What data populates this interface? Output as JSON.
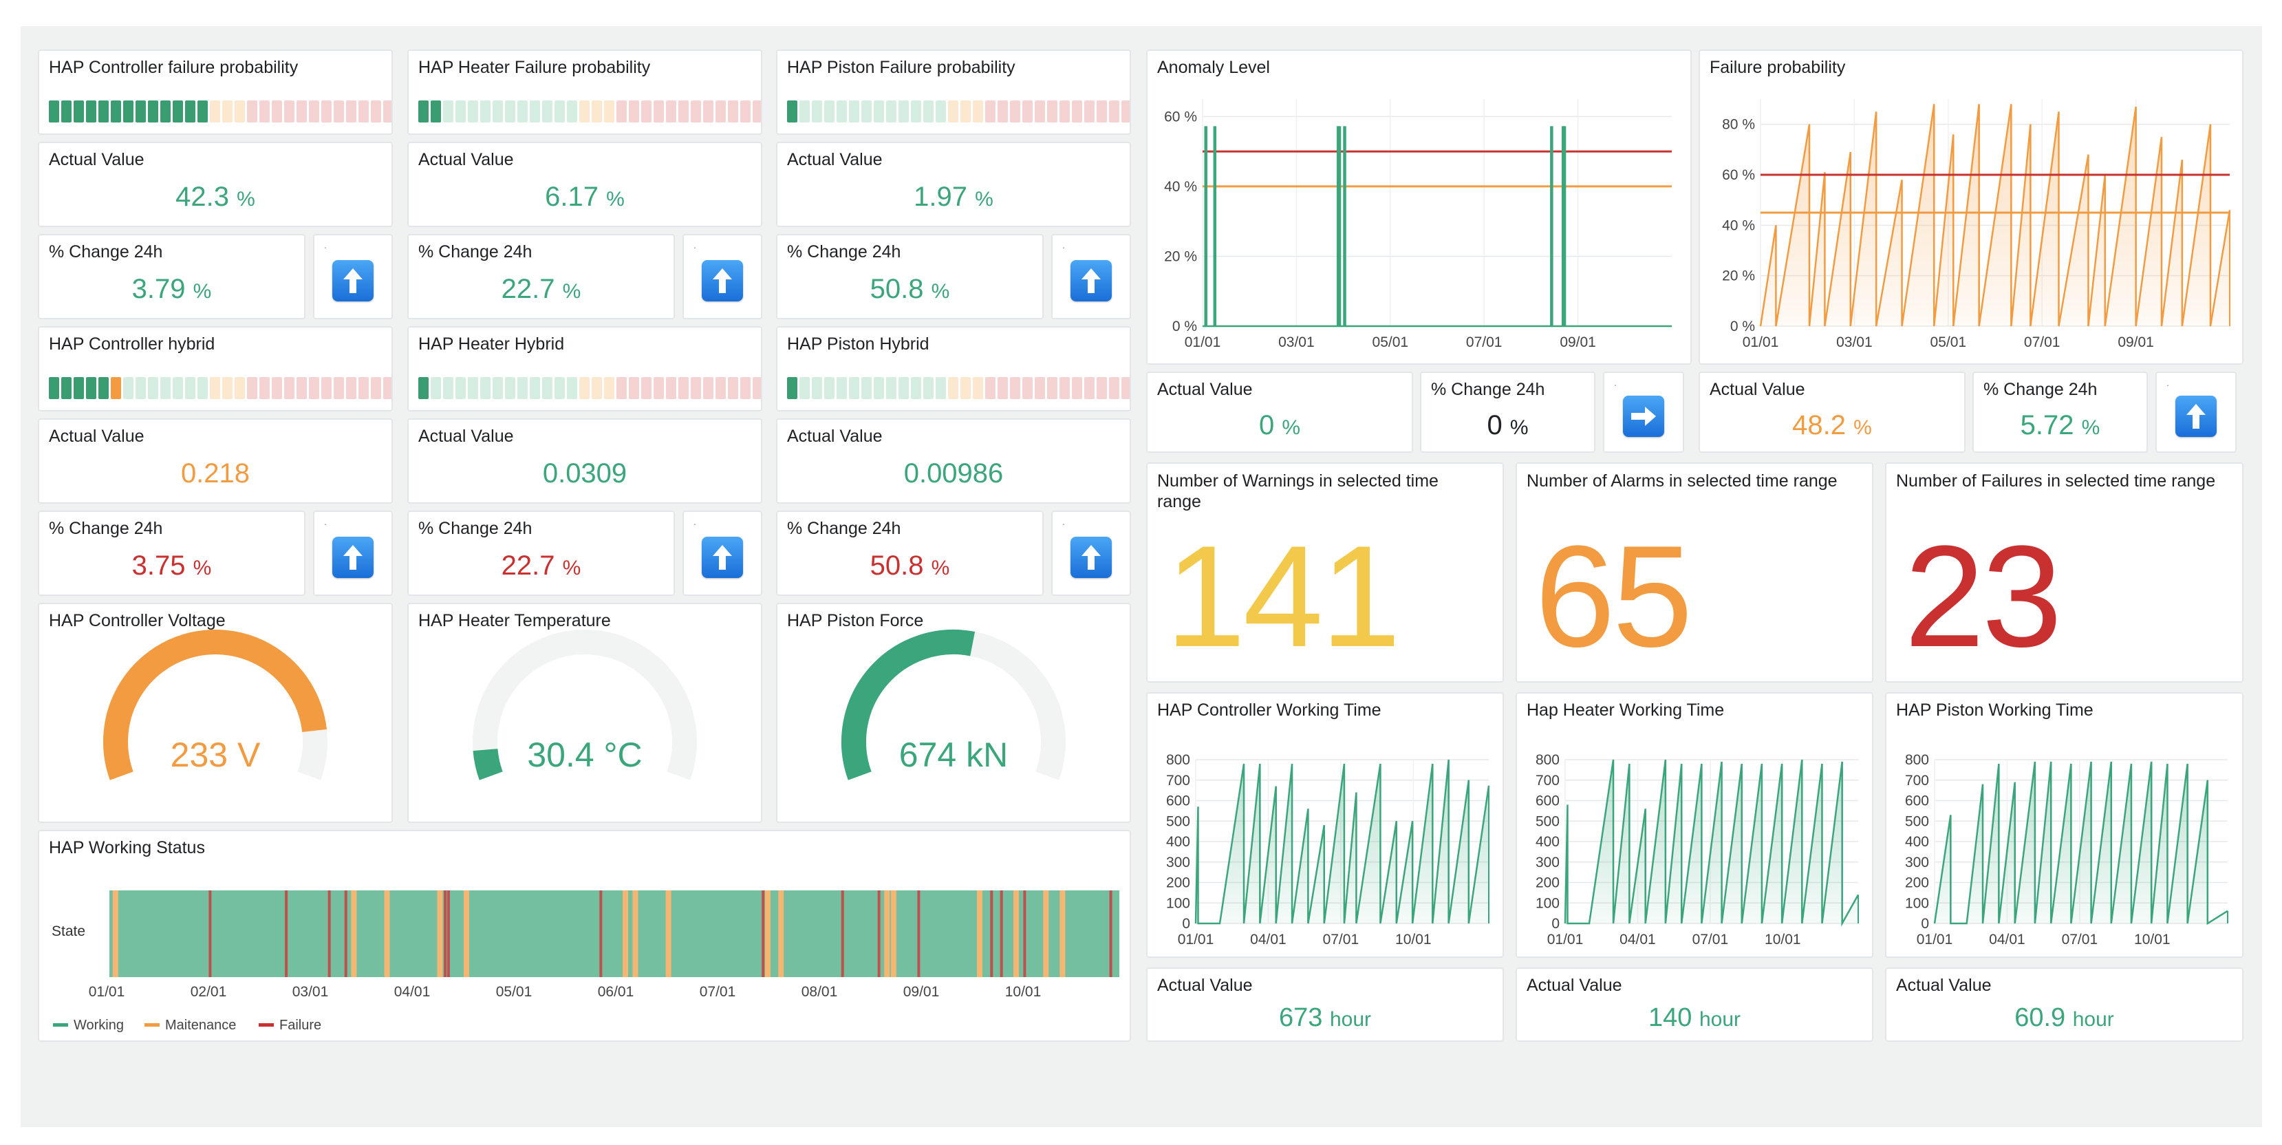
{
  "colors": {
    "green": "#3ba57c",
    "orange": "#f29b40",
    "red": "#c93030",
    "yellow": "#f2c94a",
    "grey": "#f2f3f3",
    "seg_green_on": "#3a9d72",
    "seg_green_off": "#d6ede2",
    "seg_yellow_off": "#fbe8cf",
    "seg_red_off": "#f6d3d3",
    "seg_orange_on": "#f29b40"
  },
  "bars": [
    {
      "title": "HAP Controller failure probability",
      "lit": 13,
      "lit_color": "green"
    },
    {
      "title": "HAP Heater Failure probability",
      "lit": 2,
      "lit_color": "green"
    },
    {
      "title": "HAP Piston Failure probability",
      "lit": 1,
      "lit_color": "green"
    },
    {
      "title": "HAP Controller hybrid",
      "lit": 6,
      "lit_color": "green",
      "last_orange": true
    },
    {
      "title": "HAP Heater Hybrid",
      "lit": 1,
      "lit_color": "green"
    },
    {
      "title": "HAP Piston Hybrid",
      "lit": 1,
      "lit_color": "green"
    }
  ],
  "actual_label": "Actual Value",
  "change_label": "% Change 24h",
  "arrow_dot": ".",
  "prob_values": [
    {
      "value": "42.3",
      "unit": "%"
    },
    {
      "value": "6.17",
      "unit": "%"
    },
    {
      "value": "1.97",
      "unit": "%"
    }
  ],
  "prob_changes": [
    {
      "value": "3.79",
      "unit": "%",
      "arrow": "up-arrow"
    },
    {
      "value": "22.7",
      "unit": "%",
      "arrow": "up-arrow"
    },
    {
      "value": "50.8",
      "unit": "%",
      "arrow": "up-arrow"
    }
  ],
  "hybrid_values": [
    {
      "value": "0.218"
    },
    {
      "value": "0.0309"
    },
    {
      "value": "0.00986"
    }
  ],
  "hybrid_changes": [
    {
      "value": "3.75",
      "unit": "%",
      "arrow": "up-arrow"
    },
    {
      "value": "22.7",
      "unit": "%",
      "arrow": "up-arrow"
    },
    {
      "value": "50.8",
      "unit": "%",
      "arrow": "up-arrow"
    }
  ],
  "gauges": [
    {
      "title": "HAP Controller Voltage",
      "value": "233 V",
      "fraction": 0.88,
      "color": "orange"
    },
    {
      "title": "HAP Heater Temperature",
      "value": "30.4 °C",
      "fraction": 0.07,
      "color": "green"
    },
    {
      "title": "HAP Piston Force",
      "value": "674 kN",
      "fraction": 0.55,
      "color": "green"
    }
  ],
  "working_status": {
    "title": "HAP Working Status",
    "row_label": "State",
    "ticks": [
      "01/01",
      "02/01",
      "03/01",
      "04/01",
      "05/01",
      "06/01",
      "07/01",
      "08/01",
      "09/01",
      "10/01"
    ],
    "legend": [
      {
        "label": "Working",
        "color": "#3ba57c"
      },
      {
        "label": "Maitenance",
        "color": "#f29b40"
      },
      {
        "label": "Failure",
        "color": "#c93030"
      }
    ],
    "maintenance_days": [
      1,
      73,
      83,
      99,
      107,
      155,
      158,
      168,
      198,
      202,
      234,
      236,
      262,
      273,
      282,
      287,
      318,
      325
    ],
    "failure_days": [
      30,
      53,
      66,
      71,
      101,
      102,
      148,
      197,
      221,
      232,
      244,
      266,
      269,
      276,
      302,
      334,
      336
    ]
  },
  "anomaly": {
    "title": "Anomaly Level",
    "actual": {
      "value": "0",
      "unit": "%"
    },
    "change": {
      "value": "0",
      "unit": "%",
      "arrow": "right-arrow"
    }
  },
  "failure_prob": {
    "title": "Failure probability",
    "actual": {
      "value": "48.2",
      "unit": "%"
    },
    "change": {
      "value": "5.72",
      "unit": "%",
      "arrow": "up-arrow"
    }
  },
  "counts": [
    {
      "title": "Number of Warnings in selected time range",
      "value": "141",
      "color": "yellow"
    },
    {
      "title": "Number of Alarms in selected time range",
      "value": "65",
      "color": "orange"
    },
    {
      "title": "Number of Failures in selected time range",
      "value": "23",
      "color": "red"
    }
  ],
  "working_time": [
    {
      "title": "HAP Controller Working Time",
      "actual": {
        "value": "673",
        "unit": "hour"
      }
    },
    {
      "title": "Hap Heater Working Time",
      "actual": {
        "value": "140",
        "unit": "hour"
      }
    },
    {
      "title": "HAP Piston Working Time",
      "actual": {
        "value": "60.9",
        "unit": "hour"
      }
    }
  ],
  "chart_data": [
    {
      "type": "line",
      "title": "Anomaly Level",
      "x_ticks": [
        "01/01",
        "03/01",
        "05/01",
        "07/01",
        "09/01"
      ],
      "y_ticks": [
        "0 %",
        "20 %",
        "40 %",
        "60 %"
      ],
      "ylim": [
        0,
        65
      ],
      "xlim_days": [
        0,
        365
      ],
      "thresholds": [
        {
          "value": 50,
          "color": "#c93030"
        },
        {
          "value": 40,
          "color": "#f29b40"
        }
      ],
      "series": [
        {
          "color": "#3ba57c",
          "spikes": [
            {
              "day": 2,
              "value": 57
            },
            {
              "day": 9,
              "value": 57
            },
            {
              "day": 105,
              "value": 57
            },
            {
              "day": 106,
              "value": 57
            },
            {
              "day": 110,
              "value": 57
            },
            {
              "day": 271,
              "value": 57
            },
            {
              "day": 280,
              "value": 57
            },
            {
              "day": 281,
              "value": 57
            }
          ]
        }
      ]
    },
    {
      "type": "area",
      "title": "Failure probability",
      "x_ticks": [
        "01/01",
        "03/01",
        "05/01",
        "07/01",
        "09/01"
      ],
      "y_ticks": [
        "0 %",
        "20 %",
        "40 %",
        "60 %",
        "80 %"
      ],
      "ylim": [
        0,
        90
      ],
      "xlim_days": [
        0,
        365
      ],
      "thresholds": [
        {
          "value": 60,
          "color": "#c93030"
        },
        {
          "value": 45,
          "color": "#f29b40"
        }
      ],
      "series": [
        {
          "color": "#f29b40",
          "sawtooth": [
            [
              0,
              12,
              40
            ],
            [
              12,
              38,
              80
            ],
            [
              38,
              50,
              61
            ],
            [
              50,
              70,
              69
            ],
            [
              70,
              90,
              85
            ],
            [
              90,
              110,
              58
            ],
            [
              110,
              135,
              88
            ],
            [
              135,
              150,
              76
            ],
            [
              150,
              170,
              88
            ],
            [
              170,
              195,
              88
            ],
            [
              195,
              210,
              80
            ],
            [
              210,
              232,
              85
            ],
            [
              232,
              255,
              68
            ],
            [
              255,
              268,
              60
            ],
            [
              268,
              292,
              87
            ],
            [
              292,
              312,
              75
            ],
            [
              312,
              328,
              66
            ],
            [
              328,
              350,
              80
            ],
            [
              350,
              365,
              46
            ]
          ]
        }
      ]
    },
    {
      "type": "area",
      "title": "HAP Controller Working Time",
      "x_ticks": [
        "01/01",
        "04/01",
        "07/01",
        "10/01"
      ],
      "y_ticks": [
        "0",
        "100",
        "200",
        "300",
        "400",
        "500",
        "600",
        "700",
        "800"
      ],
      "ylim": [
        0,
        800
      ],
      "xlim_days": [
        0,
        365
      ],
      "series": [
        {
          "color": "#3ba57c",
          "sawtooth": [
            [
              0,
              3,
              570
            ],
            [
              3,
              30,
              0
            ],
            [
              30,
              60,
              780
            ],
            [
              60,
              80,
              780
            ],
            [
              80,
              100,
              670
            ],
            [
              100,
              120,
              780
            ],
            [
              120,
              140,
              560
            ],
            [
              140,
              160,
              480
            ],
            [
              160,
              185,
              780
            ],
            [
              185,
              200,
              640
            ],
            [
              200,
              230,
              780
            ],
            [
              230,
              250,
              500
            ],
            [
              250,
              270,
              500
            ],
            [
              270,
              295,
              780
            ],
            [
              295,
              315,
              800
            ],
            [
              315,
              340,
              700
            ],
            [
              340,
              365,
              673
            ]
          ]
        }
      ]
    },
    {
      "type": "area",
      "title": "Hap Heater Working Time",
      "x_ticks": [
        "01/01",
        "04/01",
        "07/01",
        "10/01"
      ],
      "y_ticks": [
        "0",
        "100",
        "200",
        "300",
        "400",
        "500",
        "600",
        "700",
        "800"
      ],
      "ylim": [
        0,
        800
      ],
      "xlim_days": [
        0,
        365
      ],
      "series": [
        {
          "color": "#3ba57c",
          "sawtooth": [
            [
              0,
              3,
              580
            ],
            [
              3,
              30,
              0
            ],
            [
              30,
              60,
              800
            ],
            [
              60,
              80,
              780
            ],
            [
              80,
              100,
              560
            ],
            [
              100,
              125,
              800
            ],
            [
              125,
              145,
              780
            ],
            [
              145,
              170,
              780
            ],
            [
              170,
              195,
              790
            ],
            [
              195,
              220,
              780
            ],
            [
              220,
              245,
              780
            ],
            [
              245,
              270,
              780
            ],
            [
              270,
              295,
              800
            ],
            [
              295,
              320,
              780
            ],
            [
              320,
              345,
              790
            ],
            [
              345,
              365,
              140
            ]
          ]
        }
      ]
    },
    {
      "type": "area",
      "title": "HAP Piston Working Time",
      "x_ticks": [
        "01/01",
        "04/01",
        "07/01",
        "10/01"
      ],
      "y_ticks": [
        "0",
        "100",
        "200",
        "300",
        "400",
        "500",
        "600",
        "700",
        "800"
      ],
      "ylim": [
        0,
        800
      ],
      "xlim_days": [
        0,
        365
      ],
      "series": [
        {
          "color": "#3ba57c",
          "sawtooth": [
            [
              0,
              20,
              530
            ],
            [
              20,
              40,
              0
            ],
            [
              40,
              60,
              680
            ],
            [
              60,
              80,
              780
            ],
            [
              80,
              100,
              690
            ],
            [
              100,
              125,
              790
            ],
            [
              125,
              145,
              790
            ],
            [
              145,
              170,
              780
            ],
            [
              170,
              195,
              790
            ],
            [
              195,
              220,
              790
            ],
            [
              220,
              245,
              780
            ],
            [
              245,
              270,
              790
            ],
            [
              270,
              290,
              780
            ],
            [
              290,
              315,
              780
            ],
            [
              315,
              340,
              700
            ],
            [
              340,
              365,
              61
            ]
          ]
        }
      ]
    }
  ]
}
